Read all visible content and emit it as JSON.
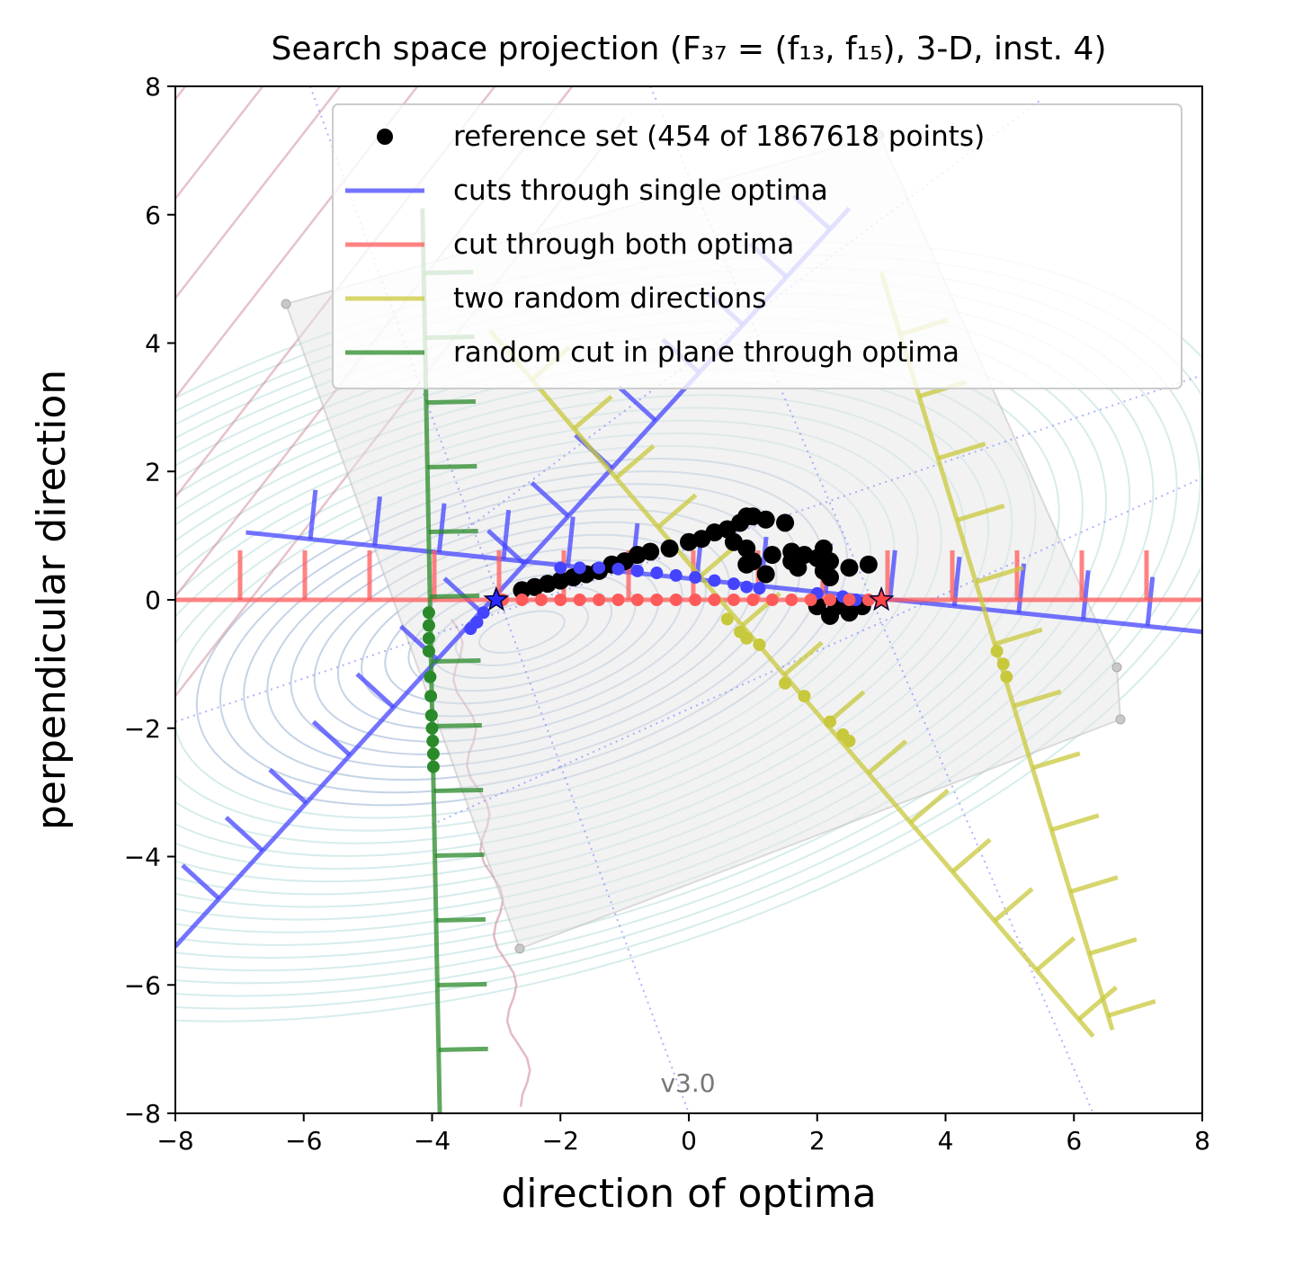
{
  "chart_data": {
    "type": "scatter",
    "title": "Search space projection (F₃₇ = (f₁₃, f₁₅), 3-D, inst. 4)",
    "xlabel": "direction of optima",
    "ylabel": "perpendicular direction",
    "xlim": [
      -8,
      8
    ],
    "ylim": [
      -8,
      8
    ],
    "x_ticks": [
      -8,
      -6,
      -4,
      -2,
      0,
      2,
      4,
      6,
      8
    ],
    "y_ticks": [
      -8,
      -6,
      -4,
      -2,
      0,
      2,
      4,
      6,
      8
    ],
    "x_tick_labels": [
      "−8",
      "−6",
      "−4",
      "−2",
      "0",
      "2",
      "4",
      "6",
      "8"
    ],
    "y_tick_labels": [
      "−8",
      "−6",
      "−4",
      "−2",
      "0",
      "2",
      "4",
      "6",
      "8"
    ],
    "grid": false,
    "legend_position": "top-right",
    "watermark": "v3.0",
    "colors": {
      "reference": "#000000",
      "single_cuts": "#4444ff",
      "both_cut": "#ff5a5a",
      "random_dirs": "#c8c83c",
      "plane_cut": "#2a8a2a",
      "contour_blue": "#7f9fc8",
      "contour_pink": "#c8788c"
    },
    "optima": [
      {
        "name": "optimum 1",
        "x": -3,
        "y": 0
      },
      {
        "name": "optimum 2",
        "x": 3,
        "y": 0
      }
    ],
    "series": [
      {
        "key": "reference",
        "name": "reference set (454 of 1867618 points)",
        "kind": "points",
        "points": [
          [
            -2.6,
            0.15
          ],
          [
            -2.4,
            0.2
          ],
          [
            -2.2,
            0.25
          ],
          [
            -2.0,
            0.3
          ],
          [
            -1.8,
            0.35
          ],
          [
            -1.6,
            0.4
          ],
          [
            -1.4,
            0.45
          ],
          [
            -1.2,
            0.55
          ],
          [
            -1.0,
            0.6
          ],
          [
            -0.8,
            0.7
          ],
          [
            -0.6,
            0.75
          ],
          [
            -0.3,
            0.8
          ],
          [
            0.0,
            0.9
          ],
          [
            0.2,
            0.95
          ],
          [
            0.4,
            1.05
          ],
          [
            0.6,
            1.1
          ],
          [
            0.8,
            1.2
          ],
          [
            0.9,
            1.3
          ],
          [
            1.0,
            1.3
          ],
          [
            1.2,
            1.25
          ],
          [
            1.5,
            1.2
          ],
          [
            0.7,
            0.9
          ],
          [
            0.9,
            0.8
          ],
          [
            1.0,
            0.6
          ],
          [
            1.3,
            0.7
          ],
          [
            1.6,
            0.75
          ],
          [
            1.8,
            0.7
          ],
          [
            2.0,
            0.65
          ],
          [
            2.1,
            0.8
          ],
          [
            2.2,
            0.6
          ],
          [
            2.5,
            0.5
          ],
          [
            2.8,
            0.55
          ],
          [
            1.2,
            0.4
          ],
          [
            1.7,
            0.5
          ],
          [
            2.2,
            0.35
          ],
          [
            2.0,
            -0.1
          ],
          [
            2.3,
            -0.1
          ],
          [
            2.7,
            -0.1
          ],
          [
            2.2,
            -0.25
          ],
          [
            2.5,
            -0.2
          ],
          [
            0.9,
            0.55
          ],
          [
            1.6,
            0.6
          ],
          [
            2.1,
            0.45
          ]
        ]
      },
      {
        "key": "single_cuts",
        "name": "cuts through single optima",
        "kind": "lines",
        "lines": [
          {
            "from": [
              -8,
              -5.4
            ],
            "to": [
              2.5,
              6.1
            ]
          },
          {
            "from": [
              -6.9,
              1.05
            ],
            "to": [
              8,
              -0.5
            ]
          }
        ],
        "points": [
          [
            -3.4,
            -0.45
          ],
          [
            -3.3,
            -0.35
          ],
          [
            -3.2,
            -0.2
          ],
          [
            -2.0,
            0.5
          ],
          [
            -1.7,
            0.5
          ],
          [
            -1.4,
            0.5
          ],
          [
            -1.1,
            0.48
          ],
          [
            -0.8,
            0.45
          ],
          [
            -0.5,
            0.42
          ],
          [
            -0.2,
            0.38
          ],
          [
            0.1,
            0.35
          ],
          [
            0.4,
            0.3
          ],
          [
            0.7,
            0.25
          ],
          [
            0.9,
            0.2
          ],
          [
            1.1,
            0.18
          ],
          [
            2.0,
            0.1
          ],
          [
            2.4,
            0.05
          ],
          [
            2.6,
            0.0
          ]
        ]
      },
      {
        "key": "both_cut",
        "name": "cut through both optima",
        "kind": "lines",
        "lines": [
          {
            "from": [
              -8,
              0
            ],
            "to": [
              8,
              0
            ]
          }
        ],
        "points": [
          [
            -2.9,
            0
          ],
          [
            -2.6,
            0
          ],
          [
            -2.3,
            0
          ],
          [
            -2.0,
            0
          ],
          [
            -1.7,
            0
          ],
          [
            -1.4,
            0
          ],
          [
            -1.1,
            0
          ],
          [
            -0.8,
            0
          ],
          [
            -0.5,
            0
          ],
          [
            -0.2,
            0
          ],
          [
            0.1,
            0
          ],
          [
            0.4,
            0
          ],
          [
            0.7,
            0
          ],
          [
            1.0,
            0
          ],
          [
            1.3,
            0
          ],
          [
            1.6,
            0
          ],
          [
            1.9,
            0
          ],
          [
            2.2,
            0
          ],
          [
            2.5,
            0
          ],
          [
            2.8,
            0
          ]
        ]
      },
      {
        "key": "random_dirs",
        "name": "two random directions",
        "kind": "lines",
        "lines": [
          {
            "from": [
              -3.1,
              4.2
            ],
            "to": [
              6.3,
              -6.8
            ]
          },
          {
            "from": [
              3.0,
              5.1
            ],
            "to": [
              6.6,
              -6.7
            ]
          }
        ],
        "points": [
          [
            0.6,
            -0.3
          ],
          [
            0.8,
            -0.5
          ],
          [
            0.9,
            -0.6
          ],
          [
            1.1,
            -0.7
          ],
          [
            1.5,
            -1.3
          ],
          [
            1.8,
            -1.5
          ],
          [
            2.2,
            -1.9
          ],
          [
            2.4,
            -2.1
          ],
          [
            2.5,
            -2.2
          ],
          [
            4.8,
            -0.8
          ],
          [
            4.9,
            -1.0
          ],
          [
            4.95,
            -1.2
          ]
        ]
      },
      {
        "key": "plane_cut",
        "name": "random cut in plane through optima",
        "kind": "lines",
        "lines": [
          {
            "from": [
              -4.15,
              6.1
            ],
            "to": [
              -3.88,
              -8
            ]
          }
        ],
        "points": [
          [
            -4.05,
            -0.2
          ],
          [
            -4.05,
            -0.4
          ],
          [
            -4.05,
            -0.6
          ],
          [
            -4.05,
            -0.8
          ],
          [
            -4.03,
            -1.2
          ],
          [
            -4.02,
            -1.5
          ],
          [
            -4.01,
            -1.8
          ],
          [
            -4.0,
            -2.0
          ],
          [
            -3.99,
            -2.2
          ],
          [
            -3.98,
            -2.4
          ],
          [
            -3.98,
            -2.6
          ]
        ]
      }
    ]
  }
}
